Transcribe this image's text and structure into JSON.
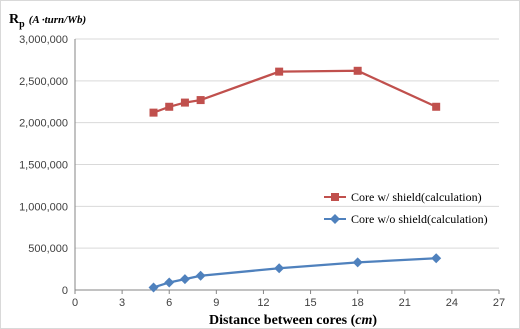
{
  "chart_data": {
    "type": "line",
    "ylabel": {
      "main": "R",
      "sub": "p",
      "unit": "(A ·turn/Wb)"
    },
    "xlabel": {
      "text": "Distance between cores (",
      "unit": "cm",
      "close": ")"
    },
    "xlim": [
      0,
      27
    ],
    "ylim": [
      0,
      3000000
    ],
    "x_ticks": [
      0,
      3,
      6,
      9,
      12,
      15,
      18,
      21,
      24,
      27
    ],
    "x_tick_labels": [
      "0",
      "3",
      "6",
      "9",
      "12",
      "15",
      "18",
      "21",
      "24",
      "27"
    ],
    "y_ticks": [
      0,
      500000,
      1000000,
      1500000,
      2000000,
      2500000,
      3000000
    ],
    "y_tick_labels": [
      "0",
      "500,000",
      "1,000,000",
      "1,500,000",
      "2,000,000",
      "2,500,000",
      "3,000,000"
    ],
    "grid": {
      "horizontal": true,
      "vertical": false
    },
    "legend_position": "right",
    "series": [
      {
        "name": "Core w/ shield(calculation)",
        "color": "#c0504d",
        "marker": "square",
        "x": [
          5,
          6,
          7,
          8,
          13,
          18,
          23
        ],
        "y": [
          2120000,
          2190000,
          2240000,
          2270000,
          2610000,
          2620000,
          2190000
        ]
      },
      {
        "name": "Core w/o shield(calculation)",
        "color": "#4f81bd",
        "marker": "diamond",
        "x": [
          5,
          6,
          7,
          8,
          13,
          18,
          23
        ],
        "y": [
          30000,
          90000,
          130000,
          170000,
          260000,
          330000,
          380000
        ]
      }
    ]
  }
}
